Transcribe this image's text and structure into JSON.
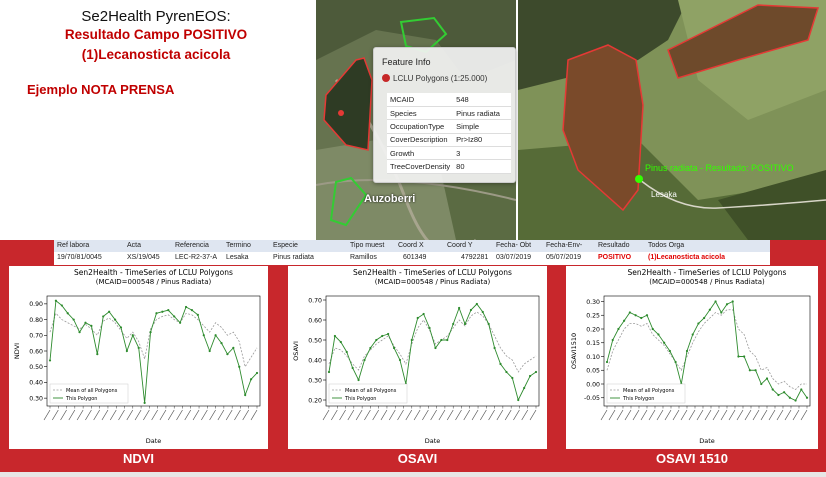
{
  "header": {
    "title": "Se2Health PyrenEOS:",
    "result_line": "Resultado Campo POSITIVO",
    "pathogen": "(1)Lecanosticta acicola",
    "press_note": "Ejemplo NOTA PRENSA"
  },
  "map_left": {
    "place_label": "Auzoberri",
    "feature_info": {
      "title": "Feature Info",
      "layer": "LCLU Polygons (1:25.000)",
      "rows": [
        {
          "key": "MCAID",
          "value": "548"
        },
        {
          "key": "Species",
          "value": "Pinus radiata"
        },
        {
          "key": "OccupationType",
          "value": "Simple"
        },
        {
          "key": "CoverDescription",
          "value": "Pr>Iz80"
        },
        {
          "key": "Growth",
          "value": "3"
        },
        {
          "key": "TreeCoverDensity",
          "value": "80"
        }
      ]
    }
  },
  "map_right": {
    "marker_label": "Pinus radiata - Resultado: POSITIVO",
    "place_label": "Lesaka"
  },
  "colors": {
    "accent_red": "#c00000",
    "panel_red": "#c8272c",
    "series_polygon": "#2e8b2e",
    "series_mean": "#9a9a9a",
    "marker_green": "#33ff00"
  },
  "data_table": {
    "headers": [
      "Ref labora",
      "Acta",
      "Referencia",
      "Termino",
      "Especie",
      "Tipo muest",
      "Coord X",
      "Coord Y",
      "Fecha- Obt",
      "Fecha-Env-",
      "Resultado",
      "Todos Orga"
    ],
    "values": [
      "19/70/81/0045",
      "XS/19/045",
      "LEC-R2-37-A",
      "Lesaka",
      "Pinus radiata",
      "Ramillos",
      "601349",
      "4792281",
      "03/07/2019",
      "05/07/2019",
      "POSITIVO",
      "(1)Lecanosticta acicola"
    ]
  },
  "charts": [
    {
      "caption": "NDVI",
      "title": "Sen2Health - TimeSeries of LCLU Polygons",
      "subtitle": "(MCAID=000548 / Pinus Radiata)",
      "xlabel": "Date",
      "ylabel": "NDVI",
      "legend": [
        "Mean of all Polygons",
        "This Polygon"
      ]
    },
    {
      "caption": "OSAVI",
      "title": "Sen2Health - TimeSeries of LCLU Polygons",
      "subtitle": "(MCAID=000548 / Pinus Radiata)",
      "xlabel": "Date",
      "ylabel": "OSAVI",
      "legend": [
        "Mean of all Polygons",
        "This Polygon"
      ]
    },
    {
      "caption": "OSAVI 1510",
      "title": "Sen2Health - TimeSeries of LCLU Polygons",
      "subtitle": "(MCAID=000548 / Pinus Radiata)",
      "xlabel": "Date",
      "ylabel": "OSAVI1510",
      "legend": [
        "Mean of all Polygons",
        "This Polygon"
      ]
    }
  ],
  "chart_data": [
    {
      "type": "line",
      "title": "Sen2Health - TimeSeries of LCLU Polygons",
      "subtitle": "(MCAID=000548 / Pinus Radiata)",
      "xlabel": "Date",
      "ylabel": "NDVI",
      "ylim": [
        0.25,
        0.95
      ],
      "yticks": [
        0.3,
        0.4,
        0.5,
        0.6,
        0.7,
        0.8,
        0.9
      ],
      "legend_position": "bottom-left",
      "series": [
        {
          "name": "This Polygon",
          "values": [
            0.54,
            0.92,
            0.89,
            0.84,
            0.8,
            0.72,
            0.78,
            0.76,
            0.58,
            0.82,
            0.85,
            0.8,
            0.75,
            0.6,
            0.7,
            0.62,
            0.27,
            0.72,
            0.84,
            0.85,
            0.86,
            0.82,
            0.78,
            0.88,
            0.86,
            0.83,
            0.7,
            0.6,
            0.7,
            0.65,
            0.58,
            0.62,
            0.5,
            0.32,
            0.42,
            0.46
          ]
        },
        {
          "name": "Mean of all Polygons",
          "values": [
            0.72,
            0.84,
            0.8,
            0.78,
            0.76,
            0.74,
            0.77,
            0.74,
            0.7,
            0.79,
            0.81,
            0.78,
            0.73,
            0.68,
            0.72,
            0.66,
            0.55,
            0.74,
            0.8,
            0.82,
            0.83,
            0.8,
            0.78,
            0.84,
            0.83,
            0.8,
            0.76,
            0.72,
            0.78,
            0.75,
            0.7,
            0.72,
            0.66,
            0.5,
            0.56,
            0.62
          ]
        }
      ]
    },
    {
      "type": "line",
      "title": "Sen2Health - TimeSeries of LCLU Polygons",
      "subtitle": "(MCAID=000548 / Pinus Radiata)",
      "xlabel": "Date",
      "ylabel": "OSAVI",
      "ylim": [
        0.17,
        0.72
      ],
      "yticks": [
        0.2,
        0.3,
        0.4,
        0.5,
        0.6,
        0.7
      ],
      "legend_position": "bottom-left",
      "series": [
        {
          "name": "This Polygon",
          "values": [
            0.34,
            0.52,
            0.49,
            0.44,
            0.36,
            0.3,
            0.4,
            0.46,
            0.5,
            0.52,
            0.53,
            0.46,
            0.4,
            0.28,
            0.5,
            0.61,
            0.63,
            0.56,
            0.46,
            0.5,
            0.5,
            0.58,
            0.66,
            0.58,
            0.65,
            0.68,
            0.64,
            0.58,
            0.46,
            0.38,
            0.34,
            0.31,
            0.2,
            0.26,
            0.32,
            0.34
          ]
        },
        {
          "name": "Mean of all Polygons",
          "values": [
            0.38,
            0.46,
            0.45,
            0.42,
            0.38,
            0.35,
            0.42,
            0.45,
            0.48,
            0.5,
            0.52,
            0.47,
            0.43,
            0.38,
            0.48,
            0.56,
            0.6,
            0.55,
            0.48,
            0.5,
            0.52,
            0.56,
            0.6,
            0.57,
            0.62,
            0.64,
            0.62,
            0.58,
            0.52,
            0.46,
            0.42,
            0.4,
            0.34,
            0.38,
            0.4,
            0.42
          ]
        }
      ]
    },
    {
      "type": "line",
      "title": "Sen2Health - TimeSeries of LCLU Polygons",
      "subtitle": "(MCAID=000548 / Pinus Radiata)",
      "xlabel": "Date",
      "ylabel": "OSAVI1510",
      "ylim": [
        -0.08,
        0.32
      ],
      "yticks": [
        -0.05,
        0.0,
        0.05,
        0.1,
        0.15,
        0.2,
        0.25,
        0.3
      ],
      "legend_position": "bottom-left",
      "series": [
        {
          "name": "This Polygon",
          "values": [
            0.08,
            0.16,
            0.2,
            0.23,
            0.26,
            0.25,
            0.24,
            0.25,
            0.2,
            0.18,
            0.15,
            0.12,
            0.08,
            0.0,
            0.12,
            0.18,
            0.22,
            0.24,
            0.27,
            0.3,
            0.26,
            0.29,
            0.3,
            0.1,
            0.1,
            0.05,
            0.05,
            0.0,
            0.02,
            -0.02,
            -0.04,
            -0.03,
            -0.05,
            -0.06,
            -0.02,
            -0.05
          ]
        },
        {
          "name": "Mean of all Polygons",
          "values": [
            0.05,
            0.12,
            0.16,
            0.2,
            0.22,
            0.22,
            0.21,
            0.22,
            0.18,
            0.16,
            0.14,
            0.11,
            0.08,
            0.05,
            0.1,
            0.15,
            0.19,
            0.22,
            0.24,
            0.26,
            0.25,
            0.27,
            0.27,
            0.2,
            0.18,
            0.12,
            0.1,
            0.05,
            0.06,
            0.02,
            0.0,
            0.01,
            -0.01,
            -0.02,
            0.0,
            0.0
          ]
        }
      ]
    }
  ]
}
